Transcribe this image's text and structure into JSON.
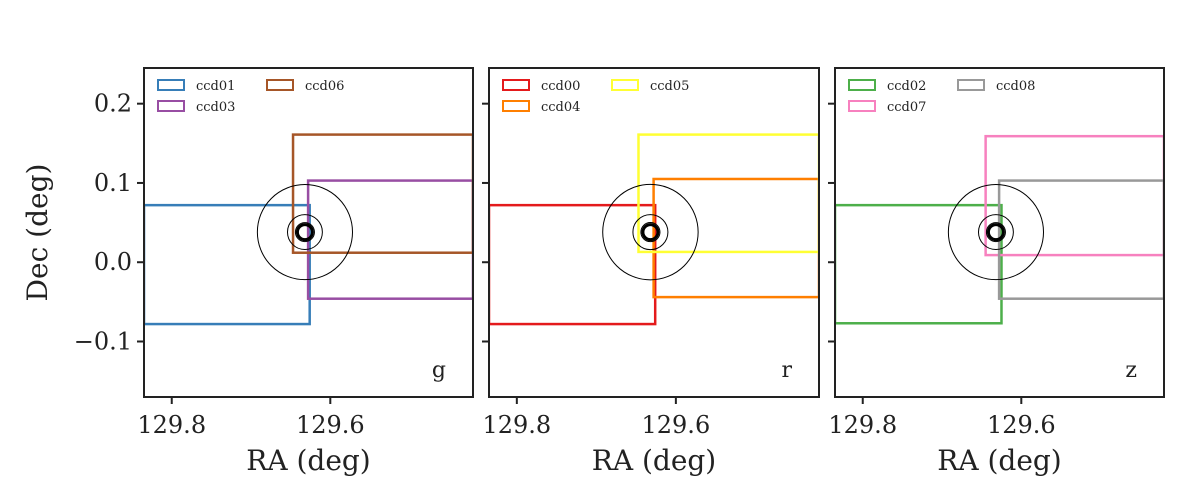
{
  "chart_data": [
    {
      "type": "scatter",
      "panel_label": "g",
      "xlabel": "RA (deg)",
      "ylabel": "Dec (deg)",
      "xlim": [
        129.835,
        129.42
      ],
      "ylim": [
        -0.17,
        0.245
      ],
      "xticks": [
        129.8,
        129.6
      ],
      "yticks": [
        -0.1,
        0.0,
        0.1,
        0.2
      ],
      "tick_labels_x": [
        "129.8",
        "129.6"
      ],
      "tick_labels_y": [
        "−0.1",
        "0.0",
        "0.1",
        "0.2"
      ],
      "grid": false,
      "legend_placement": "top-left",
      "legend_columns": 2,
      "series": [
        {
          "name": "ccd01",
          "color": "#377eb8",
          "x": [
            129.835,
            129.626
          ],
          "y": [
            -0.078,
            0.072
          ]
        },
        {
          "name": "ccd03",
          "color": "#984ea3",
          "x": [
            129.628,
            129.42
          ],
          "y": [
            -0.046,
            0.103
          ]
        },
        {
          "name": "ccd06",
          "color": "#a65628",
          "x": [
            129.647,
            129.42
          ],
          "y": [
            0.012,
            0.161
          ]
        }
      ],
      "markers": {
        "center": [
          129.632,
          0.038
        ],
        "circle_radii_deg": [
          0.012,
          0.022,
          0.06
        ]
      }
    },
    {
      "type": "scatter",
      "panel_label": "r",
      "xlabel": "RA (deg)",
      "ylabel": "",
      "xlim": [
        129.835,
        129.42
      ],
      "ylim": [
        -0.17,
        0.245
      ],
      "xticks": [
        129.8,
        129.6
      ],
      "yticks": [
        -0.1,
        0.0,
        0.1,
        0.2
      ],
      "tick_labels_x": [
        "129.8",
        "129.6"
      ],
      "grid": false,
      "legend_placement": "top-left",
      "legend_columns": 2,
      "series": [
        {
          "name": "ccd00",
          "color": "#e41a1c",
          "x": [
            129.835,
            129.626
          ],
          "y": [
            -0.078,
            0.072
          ]
        },
        {
          "name": "ccd04",
          "color": "#ff7f00",
          "x": [
            129.628,
            129.42
          ],
          "y": [
            -0.044,
            0.105
          ]
        },
        {
          "name": "ccd05",
          "color": "#ffff33",
          "x": [
            129.647,
            129.42
          ],
          "y": [
            0.013,
            0.161
          ]
        }
      ],
      "markers": {
        "center": [
          129.632,
          0.038
        ],
        "circle_radii_deg": [
          0.012,
          0.022,
          0.06
        ]
      }
    },
    {
      "type": "scatter",
      "panel_label": "z",
      "xlabel": "RA (deg)",
      "ylabel": "",
      "xlim": [
        129.835,
        129.42
      ],
      "ylim": [
        -0.17,
        0.245
      ],
      "xticks": [
        129.8,
        129.6
      ],
      "yticks": [
        -0.1,
        0.0,
        0.1,
        0.2
      ],
      "tick_labels_x": [
        "129.8",
        "129.6"
      ],
      "grid": false,
      "legend_placement": "top-left",
      "legend_columns": 2,
      "series": [
        {
          "name": "ccd02",
          "color": "#4daf4a",
          "x": [
            129.835,
            129.625
          ],
          "y": [
            -0.077,
            0.072
          ]
        },
        {
          "name": "ccd07",
          "color": "#f781bf",
          "x": [
            129.645,
            129.42
          ],
          "y": [
            0.009,
            0.159
          ]
        },
        {
          "name": "ccd08",
          "color": "#999999",
          "x": [
            129.628,
            129.42
          ],
          "y": [
            -0.046,
            0.103
          ]
        }
      ],
      "markers": {
        "center": [
          129.632,
          0.038
        ],
        "circle_radii_deg": [
          0.012,
          0.022,
          0.06
        ]
      }
    }
  ]
}
